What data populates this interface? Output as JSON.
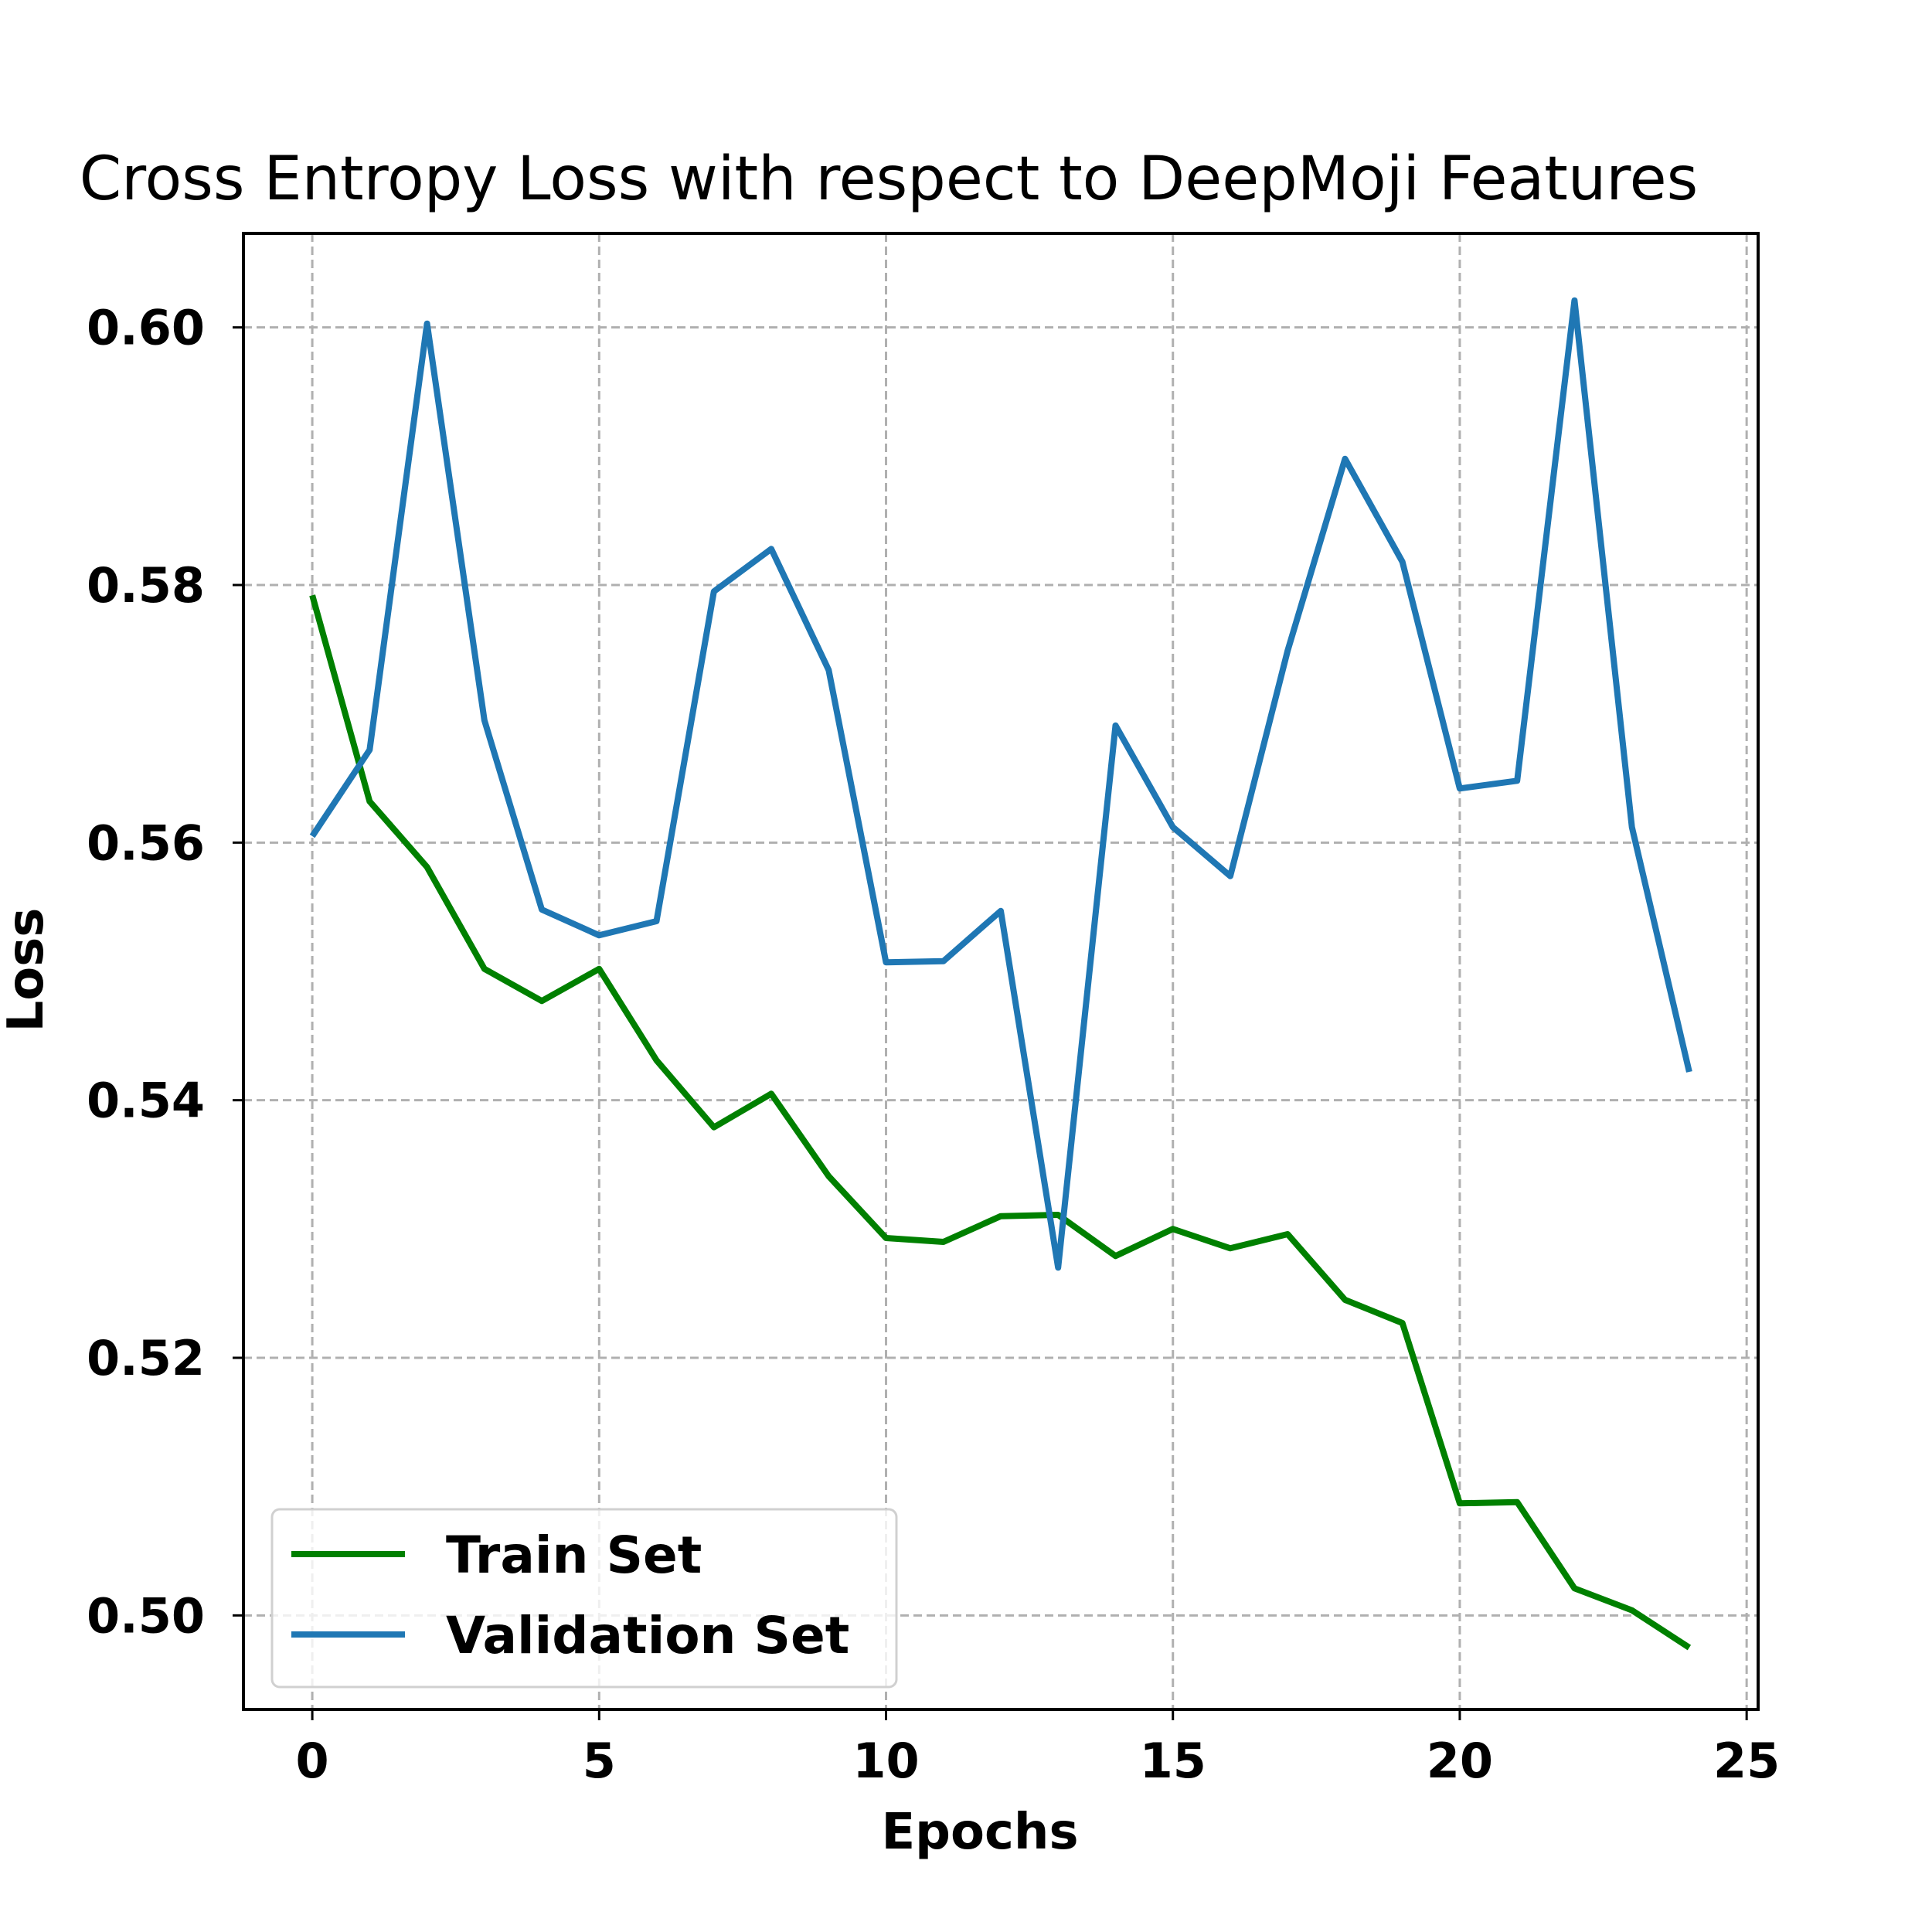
{
  "chart_data": {
    "type": "line",
    "title": "Cross Entropy Loss with respect to DeepMoji Features",
    "xlabel": "Epochs",
    "ylabel": "Loss",
    "xlim": [
      -1.2,
      25.2
    ],
    "ylim": [
      0.4927,
      0.6073
    ],
    "xticks": [
      0,
      5,
      10,
      15,
      20,
      25
    ],
    "yticks": [
      0.5,
      0.52,
      0.54,
      0.56,
      0.58,
      0.6
    ],
    "xtick_labels": [
      "0",
      "5",
      "10",
      "15",
      "20",
      "25"
    ],
    "ytick_labels": [
      "0.50",
      "0.52",
      "0.54",
      "0.56",
      "0.58",
      "0.60"
    ],
    "grid": true,
    "legend_position": "lower-left",
    "x": [
      0,
      1,
      2,
      3,
      4,
      5,
      6,
      7,
      8,
      9,
      10,
      11,
      12,
      13,
      14,
      15,
      16,
      17,
      18,
      19,
      20,
      21,
      22,
      23,
      24
    ],
    "series": [
      {
        "name": "Train Set",
        "color": "#008000",
        "values": [
          0.5792,
          0.5632,
          0.5581,
          0.5502,
          0.5477,
          0.5502,
          0.5431,
          0.5379,
          0.5405,
          0.5341,
          0.5293,
          0.529,
          0.531,
          0.5311,
          0.5279,
          0.53,
          0.5285,
          0.5296,
          0.5245,
          0.5227,
          0.5087,
          0.5088,
          0.5021,
          0.5004,
          0.4975
        ]
      },
      {
        "name": "Validation Set",
        "color": "#1f77b4",
        "values": [
          0.5605,
          0.5672,
          0.6003,
          0.5695,
          0.5548,
          0.5528,
          0.5539,
          0.5795,
          0.5828,
          0.5734,
          0.5507,
          0.5508,
          0.5547,
          0.527,
          0.5691,
          0.5612,
          0.5574,
          0.5749,
          0.5898,
          0.5818,
          0.5642,
          0.5648,
          0.6021,
          0.5612,
          0.5422
        ]
      }
    ]
  }
}
